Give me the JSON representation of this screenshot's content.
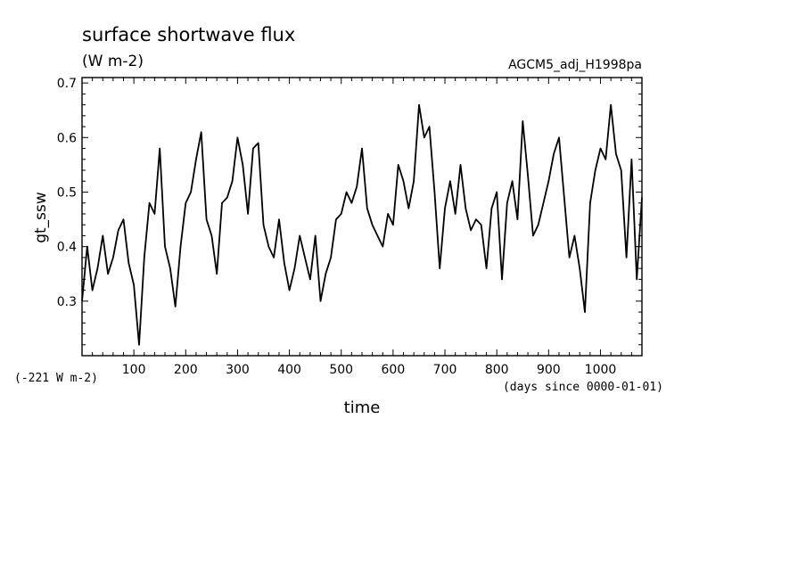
{
  "chart_data": {
    "type": "line",
    "title": "surface shortwave flux",
    "units": "(W m-2)",
    "run_label": "AGCM5_adj_H1998pa",
    "xlabel": "time",
    "x_units": "(days since 0000-01-01)",
    "ylabel": "gt_ssw",
    "offset_label": "(-221 W m-2)",
    "xlim": [
      0,
      1080
    ],
    "ylim": [
      0.2,
      0.71
    ],
    "x_ticks": [
      100,
      200,
      300,
      400,
      500,
      600,
      700,
      800,
      900,
      1000
    ],
    "y_ticks": [
      "0.3",
      "0.4",
      "0.5",
      "0.6",
      "0.7"
    ],
    "grid": false,
    "series": [
      {
        "x": [
          0,
          10,
          20,
          30,
          40,
          50,
          60,
          70,
          80,
          90,
          100,
          110,
          120,
          130,
          140,
          150,
          160,
          170,
          180,
          190,
          200,
          210,
          220,
          230,
          240,
          250,
          260,
          270,
          280,
          290,
          300,
          310,
          320,
          330,
          340,
          350,
          360,
          370,
          380,
          390,
          400,
          410,
          420,
          430,
          440,
          450,
          460,
          470,
          480,
          490,
          500,
          510,
          520,
          530,
          540,
          550,
          560,
          570,
          580,
          590,
          600,
          610,
          620,
          630,
          640,
          650,
          660,
          670,
          680,
          690,
          700,
          710,
          720,
          730,
          740,
          750,
          760,
          770,
          780,
          790,
          800,
          810,
          820,
          830,
          840,
          850,
          860,
          870,
          880,
          890,
          900,
          910,
          920,
          930,
          940,
          950,
          960,
          970,
          980,
          990,
          1000,
          1010,
          1020,
          1030,
          1040,
          1050,
          1060,
          1070,
          1080
        ],
        "values": [
          0.3,
          0.4,
          0.32,
          0.36,
          0.42,
          0.35,
          0.38,
          0.43,
          0.45,
          0.37,
          0.33,
          0.22,
          0.38,
          0.48,
          0.46,
          0.58,
          0.4,
          0.36,
          0.29,
          0.4,
          0.48,
          0.5,
          0.56,
          0.61,
          0.45,
          0.42,
          0.35,
          0.48,
          0.49,
          0.52,
          0.6,
          0.55,
          0.46,
          0.58,
          0.59,
          0.44,
          0.4,
          0.38,
          0.45,
          0.37,
          0.32,
          0.36,
          0.42,
          0.38,
          0.34,
          0.42,
          0.3,
          0.35,
          0.38,
          0.45,
          0.46,
          0.5,
          0.48,
          0.51,
          0.58,
          0.47,
          0.44,
          0.42,
          0.4,
          0.46,
          0.44,
          0.55,
          0.52,
          0.47,
          0.52,
          0.66,
          0.6,
          0.62,
          0.5,
          0.36,
          0.47,
          0.52,
          0.46,
          0.55,
          0.47,
          0.43,
          0.45,
          0.44,
          0.36,
          0.47,
          0.5,
          0.34,
          0.48,
          0.52,
          0.45,
          0.63,
          0.53,
          0.42,
          0.44,
          0.48,
          0.52,
          0.57,
          0.6,
          0.49,
          0.38,
          0.42,
          0.36,
          0.28,
          0.48,
          0.54,
          0.58,
          0.56,
          0.66,
          0.57,
          0.54,
          0.38,
          0.56,
          0.34,
          0.49
        ]
      }
    ]
  }
}
